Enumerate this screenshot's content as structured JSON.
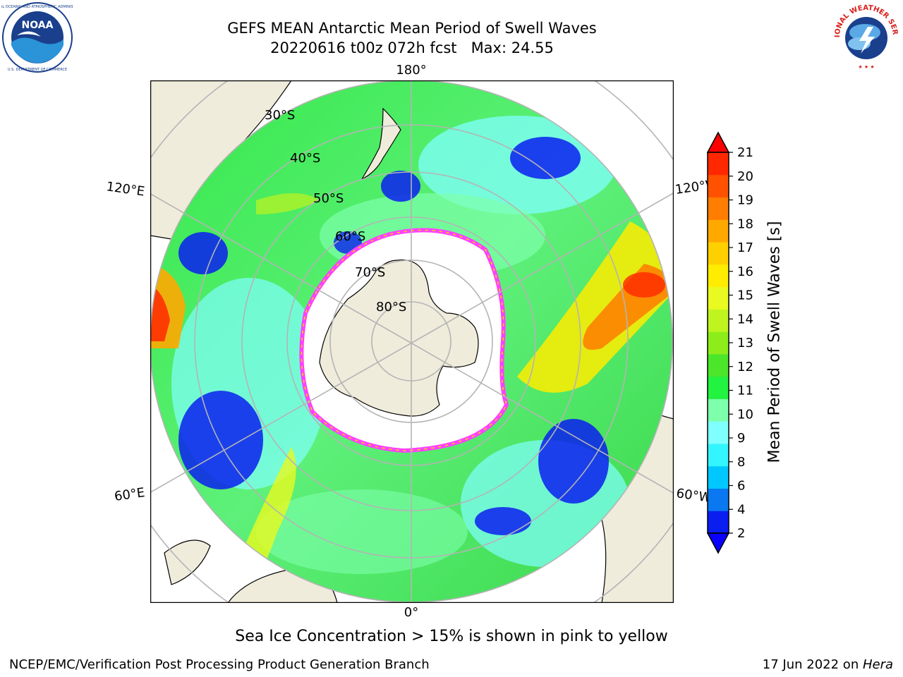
{
  "title": {
    "line1": "GEFS MEAN Antarctic Mean Period of Swell Waves",
    "line2": "20220616 t00z 072h fcst   Max: 24.55"
  },
  "caption": "Sea Ice Concentration > 15% is shown in pink to yellow",
  "footer": {
    "left": "NCEP/EMC/Verification Post Processing Product Generation Branch",
    "right_date": "17 Jun 2022 on ",
    "right_host": "Hera"
  },
  "logos": {
    "left": "NOAA",
    "right": "NATIONAL WEATHER SERVICE"
  },
  "map": {
    "projection": "south-polar-stereographic",
    "longitude_labels": [
      "180°",
      "120°E",
      "120°W",
      "60°E",
      "60°W",
      "0°"
    ],
    "latitude_labels": [
      "30°S",
      "40°S",
      "50°S",
      "60°S",
      "70°S",
      "80°S"
    ]
  },
  "colorbar": {
    "label": "Mean Period of Swell Waves [s]",
    "unit": "s",
    "ticks": [
      "2",
      "4",
      "6",
      "8",
      "9",
      "10",
      "11",
      "12",
      "13",
      "14",
      "15",
      "16",
      "17",
      "18",
      "19",
      "20",
      "21"
    ],
    "colors": [
      "#0a1ef0",
      "#0a78f0",
      "#00c8ff",
      "#33f5ff",
      "#80ffff",
      "#7dffab",
      "#22f240",
      "#4be62a",
      "#8ced1a",
      "#bff41f",
      "#e8fa1f",
      "#ffec00",
      "#ffd000",
      "#ffa800",
      "#ff7d00",
      "#ff5200",
      "#ff2800"
    ],
    "under_color": "#0a00ff",
    "over_color": "#ff0000"
  }
}
